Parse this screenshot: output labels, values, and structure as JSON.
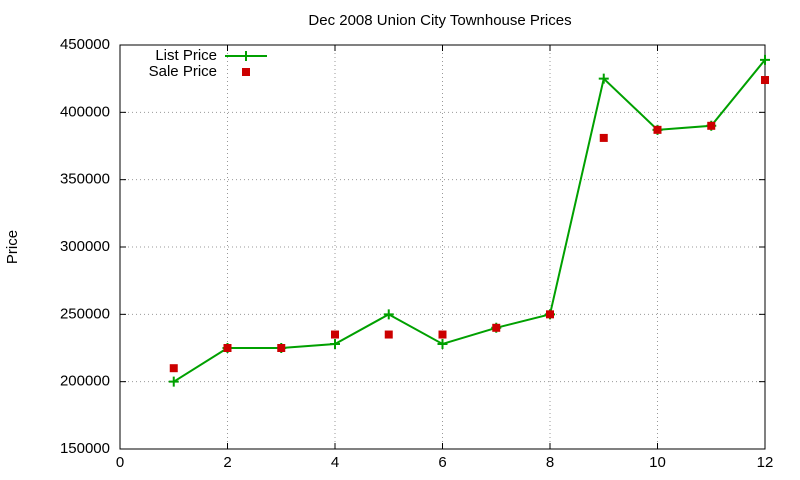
{
  "chart_data": {
    "type": "line",
    "title": "Dec 2008 Union City Townhouse Prices",
    "y_label": "Price",
    "x": [
      1,
      2,
      3,
      4,
      5,
      6,
      7,
      8,
      9,
      10,
      11,
      12
    ],
    "series": [
      {
        "name": "List Price",
        "color": "#00a000",
        "style": "linespoints",
        "marker": "plus",
        "values": [
          200000,
          225000,
          225000,
          228000,
          250000,
          228000,
          240000,
          250000,
          425000,
          387000,
          390000,
          439000
        ]
      },
      {
        "name": "Sale Price",
        "color": "#cc0000",
        "style": "points",
        "marker": "square",
        "values": [
          210000,
          225000,
          225000,
          235000,
          235000,
          235000,
          240000,
          250000,
          381000,
          387000,
          390000,
          424000
        ]
      }
    ],
    "xlim": [
      0,
      12
    ],
    "xticks": [
      0,
      2,
      4,
      6,
      8,
      10,
      12
    ],
    "ylim": [
      150000,
      450000
    ],
    "yticks": [
      150000,
      200000,
      250000,
      300000,
      350000,
      400000,
      450000
    ],
    "grid": true,
    "legend": "top-left"
  }
}
